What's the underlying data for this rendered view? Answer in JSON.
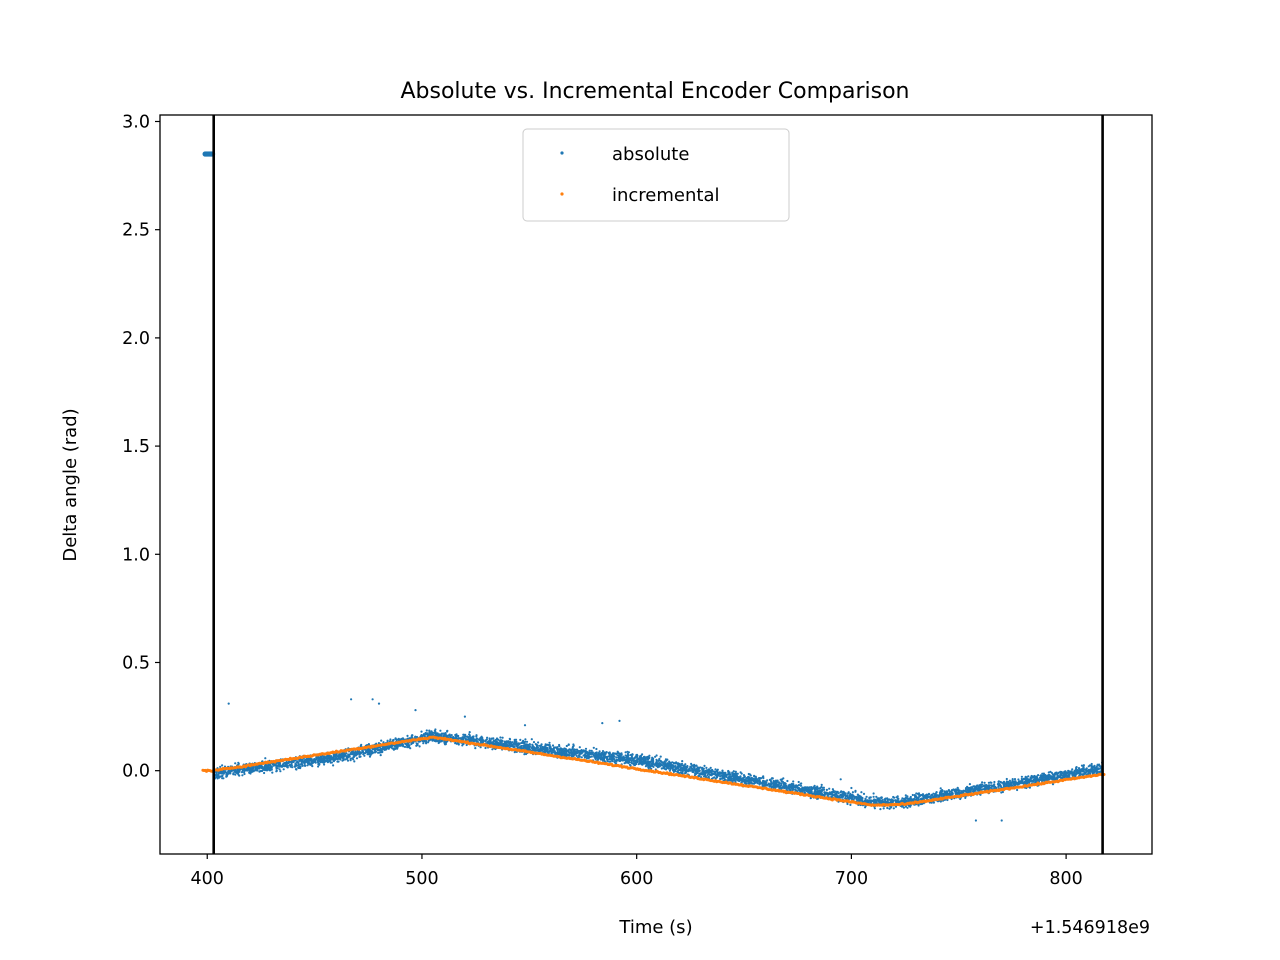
{
  "chart_data": {
    "type": "scatter",
    "title": "Absolute vs. Incremental Encoder Comparison",
    "xlabel": "Time (s)",
    "ylabel": "Delta angle (rad)",
    "x_offset_label": "+1.546918e9",
    "x_offset": 1546918000,
    "xlim": [
      378,
      840
    ],
    "ylim": [
      -0.385,
      3.03
    ],
    "xticks": [
      400,
      500,
      600,
      700,
      800
    ],
    "xtick_labels": [
      "400",
      "500",
      "600",
      "700",
      "800"
    ],
    "yticks": [
      0.0,
      0.5,
      1.0,
      1.5,
      2.0,
      2.5,
      3.0
    ],
    "ytick_labels": [
      "0.0",
      "0.5",
      "1.0",
      "1.5",
      "2.0",
      "2.5",
      "3.0"
    ],
    "grid": false,
    "legend_position": "upper center",
    "vertical_lines": [
      403,
      817
    ],
    "series": [
      {
        "name": "absolute",
        "color": "#1f77b4",
        "marker": "point",
        "trend": [
          [
            403,
            -0.01
          ],
          [
            460,
            0.06
          ],
          [
            505,
            0.16
          ],
          [
            600,
            0.05
          ],
          [
            710,
            -0.145
          ],
          [
            725,
            -0.145
          ],
          [
            817,
            0.01
          ]
        ],
        "startup_points": [
          [
            399,
            2.85
          ],
          [
            399.5,
            2.85
          ],
          [
            400,
            2.85
          ],
          [
            400.5,
            2.85
          ],
          [
            401,
            2.85
          ],
          [
            401.5,
            2.85
          ],
          [
            402,
            2.85
          ],
          [
            402.5,
            2.85
          ]
        ],
        "outliers": [
          [
            410,
            0.31
          ],
          [
            467,
            0.33
          ],
          [
            477,
            0.33
          ],
          [
            480,
            0.31
          ],
          [
            497,
            0.28
          ],
          [
            520,
            0.25
          ],
          [
            548,
            0.21
          ],
          [
            584,
            0.22
          ],
          [
            592,
            0.23
          ],
          [
            695,
            -0.04
          ],
          [
            700,
            -0.08
          ],
          [
            758,
            -0.23
          ],
          [
            770,
            -0.23
          ]
        ]
      },
      {
        "name": "incremental",
        "color": "#ff7f0e",
        "marker": "point",
        "trend": [
          [
            398,
            0.0
          ],
          [
            403,
            0.0
          ],
          [
            505,
            0.155
          ],
          [
            710,
            -0.16
          ],
          [
            725,
            -0.155
          ],
          [
            818,
            -0.015
          ]
        ]
      }
    ]
  }
}
